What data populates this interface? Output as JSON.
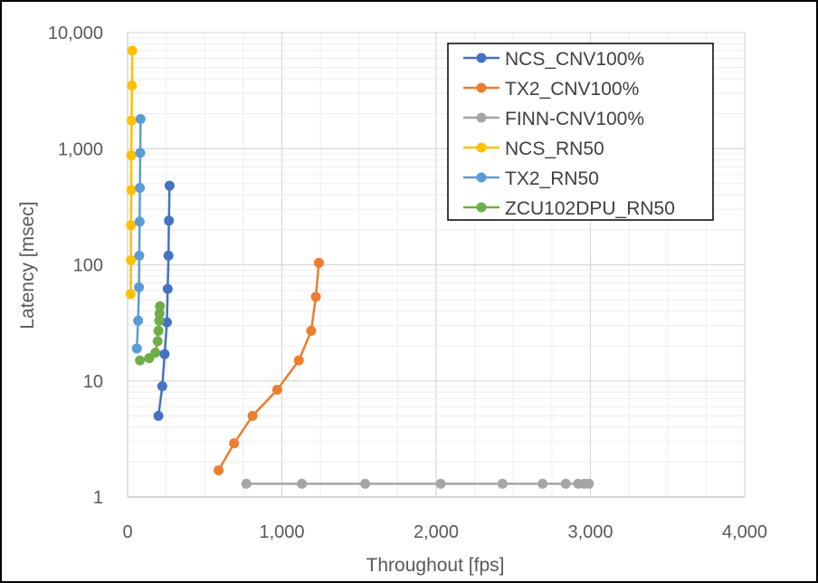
{
  "chart_data": {
    "type": "scatter",
    "title": "",
    "xlabel": "Throughout [fps]",
    "ylabel": "Latency [msec]",
    "xlim": [
      0,
      4000
    ],
    "ylim": [
      1,
      10000
    ],
    "yscale": "log",
    "grid": true,
    "legend_position": "top-right",
    "x_ticks": [
      "0",
      "1,000",
      "2,000",
      "3,000",
      "4,000"
    ],
    "y_ticks": [
      "1",
      "10",
      "100",
      "1,000",
      "10,000"
    ],
    "series": [
      {
        "name": "NCS_CNV100%",
        "color": "#4472C4",
        "points": [
          [
            200,
            5
          ],
          [
            225,
            9
          ],
          [
            240,
            17
          ],
          [
            255,
            32
          ],
          [
            260,
            62
          ],
          [
            265,
            120
          ],
          [
            268,
            240
          ],
          [
            272,
            480
          ]
        ]
      },
      {
        "name": "TX2_CNV100%",
        "color": "#ED7D31",
        "points": [
          [
            590,
            1.7
          ],
          [
            690,
            2.9
          ],
          [
            810,
            5
          ],
          [
            970,
            8.4
          ],
          [
            1110,
            15
          ],
          [
            1190,
            27
          ],
          [
            1220,
            53
          ],
          [
            1240,
            104
          ]
        ]
      },
      {
        "name": "FINN-CNV100%",
        "color": "#A5A5A5",
        "points": [
          [
            770,
            1.3
          ],
          [
            1130,
            1.3
          ],
          [
            1540,
            1.3
          ],
          [
            2030,
            1.3
          ],
          [
            2430,
            1.3
          ],
          [
            2690,
            1.3
          ],
          [
            2840,
            1.3
          ],
          [
            2920,
            1.3
          ],
          [
            2960,
            1.3
          ],
          [
            2990,
            1.3
          ]
        ]
      },
      {
        "name": "NCS_RN50",
        "color": "#FFC000",
        "points": [
          [
            20,
            56
          ],
          [
            22,
            110
          ],
          [
            22,
            220
          ],
          [
            24,
            440
          ],
          [
            24,
            880
          ],
          [
            26,
            1750
          ],
          [
            28,
            3500
          ],
          [
            30,
            7000
          ]
        ]
      },
      {
        "name": "TX2_RN50",
        "color": "#5B9BD5",
        "points": [
          [
            60,
            19
          ],
          [
            68,
            33
          ],
          [
            74,
            64
          ],
          [
            76,
            120
          ],
          [
            78,
            235
          ],
          [
            80,
            460
          ],
          [
            82,
            920
          ],
          [
            84,
            1800
          ]
        ]
      },
      {
        "name": "ZCU102DPU_RN50",
        "color": "#70AD47",
        "points": [
          [
            80,
            15
          ],
          [
            140,
            15.7
          ],
          [
            180,
            17.5
          ],
          [
            195,
            22
          ],
          [
            200,
            27
          ],
          [
            205,
            33
          ],
          [
            207,
            38
          ],
          [
            210,
            44
          ]
        ]
      }
    ]
  }
}
